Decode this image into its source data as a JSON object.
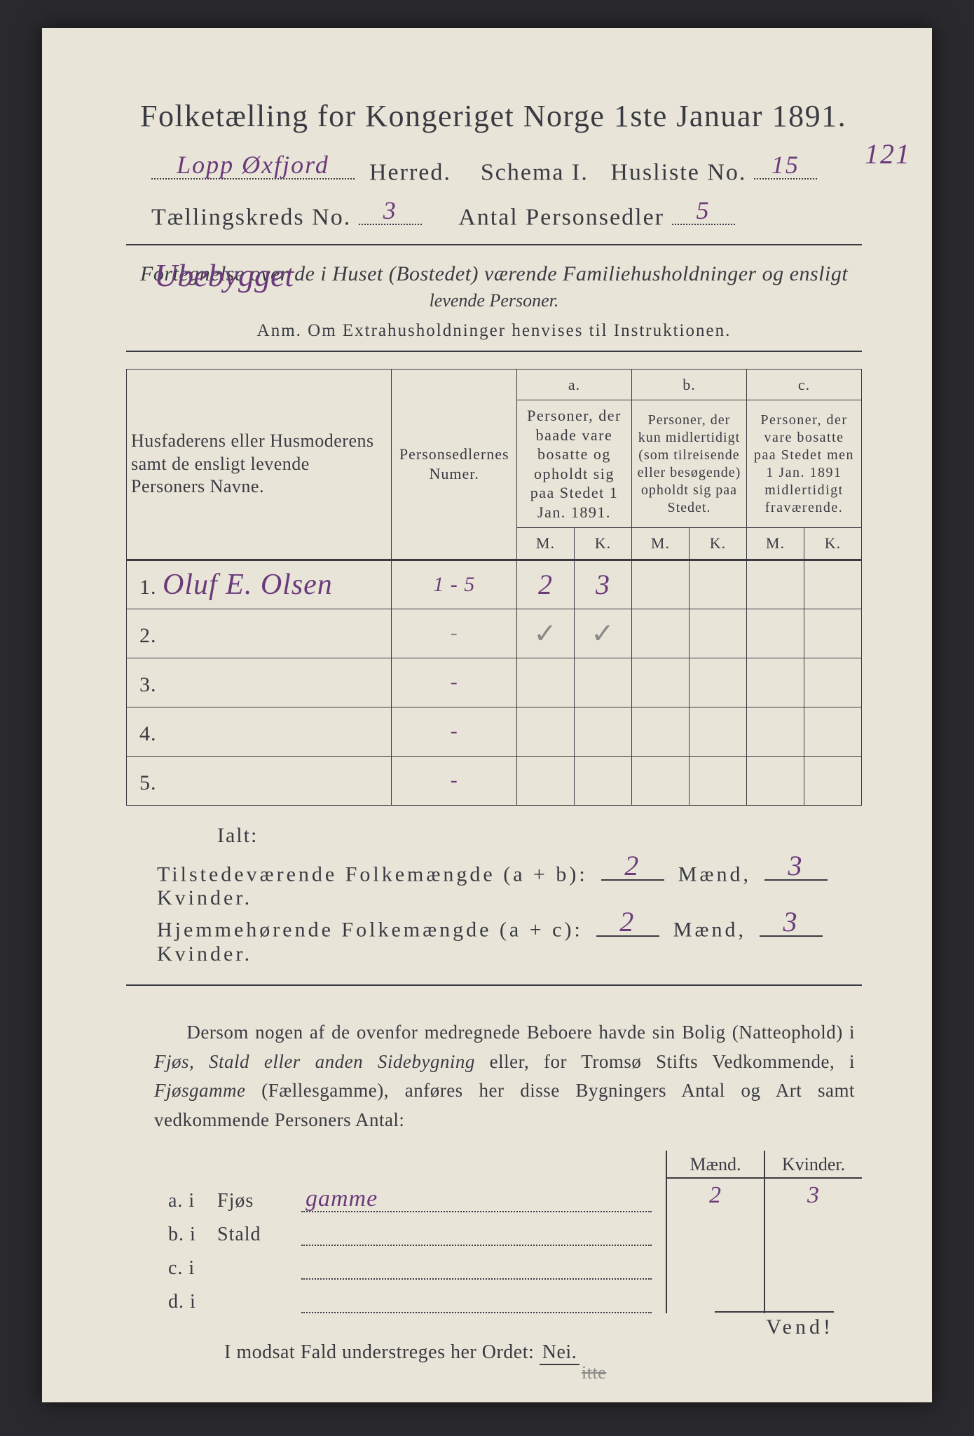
{
  "doc": {
    "title": "Folketælling for Kongeriget Norge 1ste Januar 1891.",
    "herred_label": "Herred.",
    "herred_value": "Lopp Øxfjord",
    "schema_label": "Schema I.",
    "husliste_label": "Husliste No.",
    "husliste_value": "15",
    "husliste_margin": "121",
    "kreds_label": "Tællingskreds No.",
    "kreds_value": "3",
    "antal_label": "Antal Personsedler",
    "antal_value": "5",
    "subheading1a": "Fortegnelse over de i Huset (Bostedet) værende Familiehusholdninger og ensligt",
    "subheading1b": "levende Personer.",
    "ubebygget": "Ubebygget",
    "anm": "Anm.  Om Extrahusholdninger henvises til Instruktionen."
  },
  "table": {
    "colA": "Husfaderens eller Husmoderens samt de ensligt levende Personers Navne.",
    "colB": "Personsedlernes Numer.",
    "a_label": "a.",
    "a_desc": "Personer, der baade vare bosatte og opholdt sig paa Stedet 1 Jan. 1891.",
    "b_label": "b.",
    "b_desc": "Personer, der kun midlertidigt (som tilreisende eller besøgende) opholdt sig paa Stedet.",
    "c_label": "c.",
    "c_desc": "Personer, der vare bosatte paa Stedet men 1 Jan. 1891 midlertidigt fraværende.",
    "M": "M.",
    "K": "K.",
    "rows": [
      {
        "n": "1.",
        "name": "Oluf E. Olsen",
        "ps": "1 - 5",
        "aM": "2",
        "aK": "3",
        "bM": "",
        "bK": "",
        "cM": "",
        "cK": ""
      },
      {
        "n": "2.",
        "name": "",
        "ps": "-",
        "aM": "✓",
        "aK": "✓",
        "bM": "",
        "bK": "",
        "cM": "",
        "cK": ""
      },
      {
        "n": "3.",
        "name": "",
        "ps": "-",
        "aM": "",
        "aK": "",
        "bM": "",
        "bK": "",
        "cM": "",
        "cK": ""
      },
      {
        "n": "4.",
        "name": "",
        "ps": "-",
        "aM": "",
        "aK": "",
        "bM": "",
        "bK": "",
        "cM": "",
        "cK": ""
      },
      {
        "n": "5.",
        "name": "",
        "ps": "-",
        "aM": "",
        "aK": "",
        "bM": "",
        "bK": "",
        "cM": "",
        "cK": ""
      }
    ]
  },
  "totals": {
    "ialt": "Ialt:",
    "line1_label": "Tilstedeværende Folkemængde (a + b):",
    "line2_label": "Hjemmehørende Folkemængde (a + c):",
    "maend": "Mænd,",
    "kvinder": "Kvinder.",
    "t_m": "2",
    "t_k": "3",
    "h_m": "2",
    "h_k": "3"
  },
  "para": {
    "text1": "Dersom nogen af de ovenfor medregnede Beboere havde sin Bolig (Natteophold) i ",
    "it1": "Fjøs, Stald eller anden Sidebygning",
    "text2": " eller, for Tromsø Stifts Vedkommende, i ",
    "it2": "Fjøsgamme",
    "text3": " (Fællesgamme), anføres her disse Bygningers Antal og Art samt vedkommende Personers Antal:"
  },
  "byg": {
    "hdr_m": "Mænd.",
    "hdr_k": "Kvinder.",
    "rows": [
      {
        "l": "a.  i",
        "t": "Fjøs",
        "extra": "gamme",
        "m": "2",
        "k": "3"
      },
      {
        "l": "b.  i",
        "t": "Stald",
        "extra": "",
        "m": "",
        "k": ""
      },
      {
        "l": "c.  i",
        "t": "",
        "extra": "",
        "m": "",
        "k": ""
      },
      {
        "l": "d.  i",
        "t": "",
        "extra": "",
        "m": "",
        "k": ""
      }
    ]
  },
  "footer": {
    "modsat": "I modsat Fald understreges her Ordet: ",
    "nei": "Nei.",
    "struck": "itte",
    "vend": "Vend!"
  },
  "style": {
    "paper_bg": "#e8e5d8",
    "ink": "#3a3a42",
    "handwriting": "#6b3a7a",
    "pencil": "#8a8a88",
    "title_fs": 44,
    "body_fs": 28,
    "table_fs": 23
  }
}
